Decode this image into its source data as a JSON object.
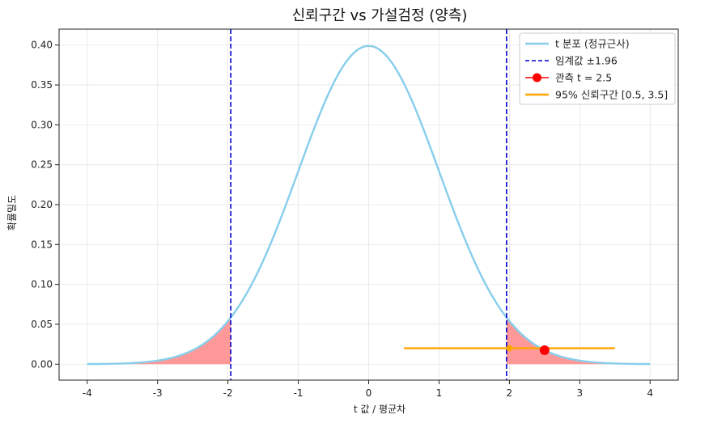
{
  "chart_data": {
    "type": "line",
    "title": "신뢰구간 vs 가설검정 (양측)",
    "xlabel": "t 값 / 평균차",
    "ylabel": "확률밀도",
    "xlim": [
      -4.4,
      4.4
    ],
    "ylim": [
      -0.02,
      0.42
    ],
    "xticks": [
      -4,
      -3,
      -2,
      -1,
      0,
      1,
      2,
      3,
      4
    ],
    "xtick_labels": [
      "-4",
      "-3",
      "-2",
      "-1",
      "0",
      "1",
      "2",
      "3",
      "4"
    ],
    "yticks": [
      0.0,
      0.05,
      0.1,
      0.15,
      0.2,
      0.25,
      0.3,
      0.35,
      0.4
    ],
    "ytick_labels": [
      "0.00",
      "0.05",
      "0.10",
      "0.15",
      "0.20",
      "0.25",
      "0.30",
      "0.35",
      "0.40"
    ],
    "grid": true,
    "legend_position": "top-right",
    "curve": {
      "name": "t 분포 (정규근사)",
      "x_range": [
        -4,
        4
      ],
      "mean": 0,
      "sd": 1,
      "color": "#87ceeb"
    },
    "critical_value": {
      "name": "임계값 ±1.96",
      "values": [
        -1.96,
        1.96
      ],
      "color": "#0000cc"
    },
    "rejection_region": {
      "color": "#ff9999",
      "x_range": [
        -4,
        4
      ],
      "threshold": 1.96
    },
    "observed": {
      "name": "관측 t = 2.5",
      "x": 2.5,
      "y": 0.0175,
      "color": "#ff0000"
    },
    "confidence_interval": {
      "name": "95% 신뢰구간 [0.5, 3.5]",
      "x": [
        0.5,
        3.5
      ],
      "y": 0.02,
      "center": 2.0,
      "color": "#ffa500"
    },
    "legend": [
      {
        "label": "t 분포 (정규근사)",
        "style": "line",
        "color": "#87ceeb"
      },
      {
        "label": "임계값 ±1.96",
        "style": "dashed",
        "color": "#0000cc"
      },
      {
        "label": "관측 t = 2.5",
        "style": "marker",
        "color": "#ff0000"
      },
      {
        "label": "95% 신뢰구간 [0.5, 3.5]",
        "style": "line",
        "color": "#ffa500"
      }
    ]
  }
}
